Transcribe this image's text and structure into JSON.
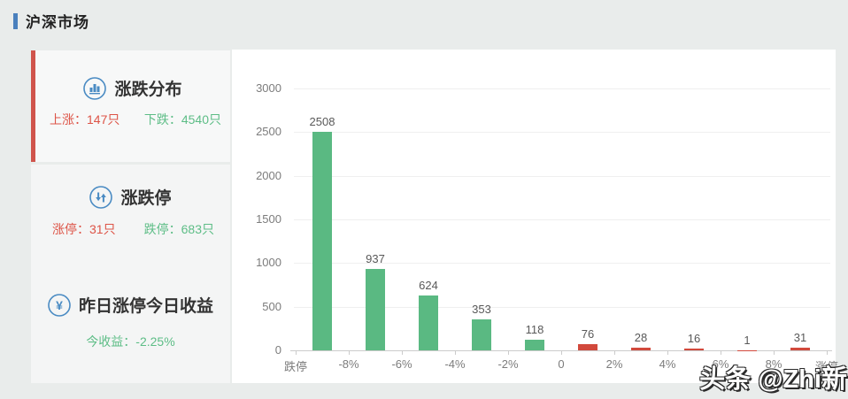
{
  "page": {
    "title": "沪深市场"
  },
  "watermark": {
    "text": "头条 @Zhi新"
  },
  "sidebar": {
    "cards": [
      {
        "title": "涨跌分布",
        "icon": "bar-chart-icon",
        "active": true,
        "stats": [
          {
            "text": "上涨：147只"
          },
          {
            "text": "下跌：4540只"
          }
        ]
      },
      {
        "title": "涨跌停",
        "icon": "up-down-arrows-icon",
        "stats": [
          {
            "text": "涨停：31只"
          },
          {
            "text": "跌停：683只"
          }
        ]
      },
      {
        "title": "昨日涨停今日收益",
        "icon": "yuan-icon",
        "stats": [
          {
            "text": "今收益：-2.25%"
          }
        ]
      }
    ]
  },
  "chart_data": {
    "type": "bar",
    "x_tick_labels": [
      "跌停",
      "-8%",
      "-6%",
      "-4%",
      "-2%",
      "0",
      "2%",
      "4%",
      "6%",
      "8%",
      "涨停"
    ],
    "values": [
      2508,
      937,
      624,
      353,
      118,
      76,
      28,
      16,
      1,
      31
    ],
    "series_colors": [
      "#5ab982",
      "#5ab982",
      "#5ab982",
      "#5ab982",
      "#5ab982",
      "#d2493c",
      "#d2493c",
      "#d2493c",
      "#d2493c",
      "#d2493c"
    ],
    "ylim": [
      0,
      3000
    ],
    "yticks": [
      0,
      500,
      1000,
      1500,
      2000,
      2500,
      3000
    ],
    "grid": true,
    "legend_position": "none"
  },
  "colors": {
    "rise_red": "#dd5447",
    "fall_green": "#5dbd86",
    "accent_blue": "#4a80bd",
    "icon_blue": "#4a8bc3",
    "bar_green": "#5ab982",
    "bar_red": "#d2493c",
    "active_indicator_red": "#d0544c"
  }
}
